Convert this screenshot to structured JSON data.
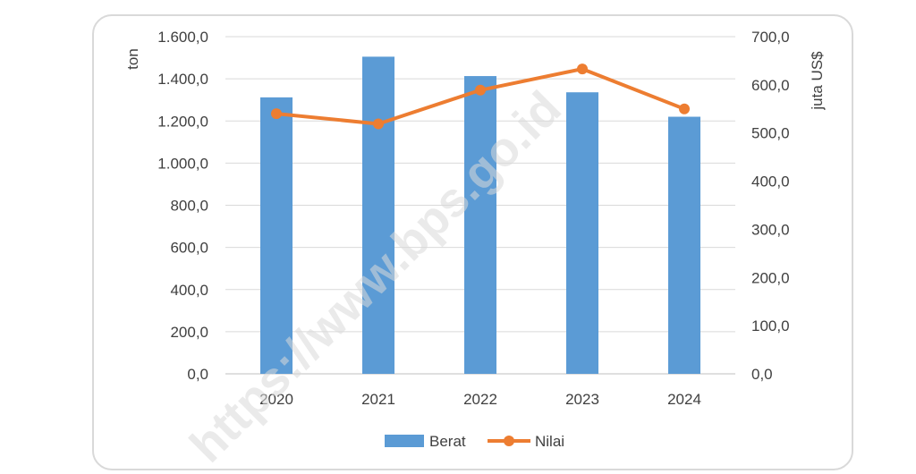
{
  "chart_data": {
    "type": "bar",
    "categories": [
      "2020",
      "2021",
      "2022",
      "2023",
      "2024"
    ],
    "series": [
      {
        "name": "Berat",
        "type": "bar",
        "axis": "left",
        "values": [
          1312,
          1505,
          1413,
          1336,
          1220
        ],
        "color": "#5b9bd5"
      },
      {
        "name": "Nilai",
        "type": "line",
        "axis": "right",
        "values": [
          540,
          519,
          589,
          633,
          550
        ],
        "color": "#ed7d31"
      }
    ],
    "ylabel": "ton",
    "y2label": "juta US$",
    "ylim": [
      0,
      1600
    ],
    "y2lim": [
      0,
      700
    ],
    "yticks": [
      "0,0",
      "200,0",
      "400,0",
      "600,0",
      "800,0",
      "1.000,0",
      "1.200,0",
      "1.400,0",
      "1.600,0"
    ],
    "y2ticks": [
      "0,0",
      "100,0",
      "200,0",
      "300,0",
      "400,0",
      "500,0",
      "600,0",
      "700,0"
    ],
    "grid": true,
    "legend": "bottom"
  },
  "watermark": "https://www.bps.go.id"
}
